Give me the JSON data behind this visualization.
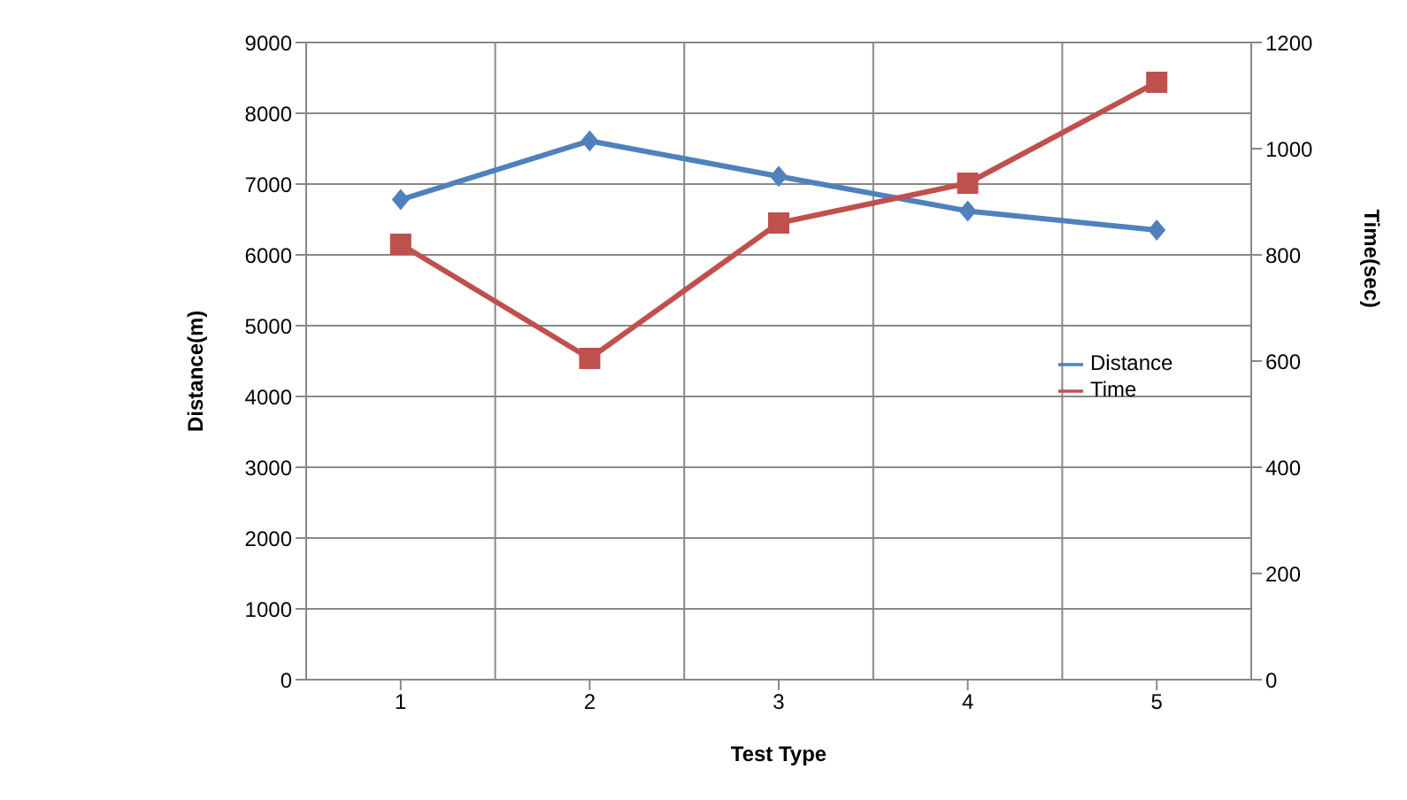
{
  "chart_data": {
    "type": "line",
    "xlabel": "Test Type",
    "ylabel": "Distance(m)",
    "y2label": "Time(sec)",
    "categories": [
      "1",
      "2",
      "3",
      "4",
      "5"
    ],
    "series": [
      {
        "name": "Distance",
        "color": "#4f81bd",
        "values": [
          6780,
          7610,
          7110,
          6620,
          6350
        ],
        "marker": "diamond"
      },
      {
        "name": "Time",
        "color": "#c0504d",
        "values": [
          820,
          605,
          860,
          935,
          1125
        ],
        "axis": "y2",
        "marker": "square"
      }
    ],
    "ylim": [
      0,
      9000
    ],
    "yticks": [
      0,
      1000,
      2000,
      3000,
      4000,
      5000,
      6000,
      7000,
      8000,
      9000
    ],
    "y2lim": [
      0,
      1200
    ],
    "y2ticks": [
      0,
      200,
      400,
      600,
      800,
      1000,
      1200
    ],
    "grid": true,
    "legend": "right"
  }
}
